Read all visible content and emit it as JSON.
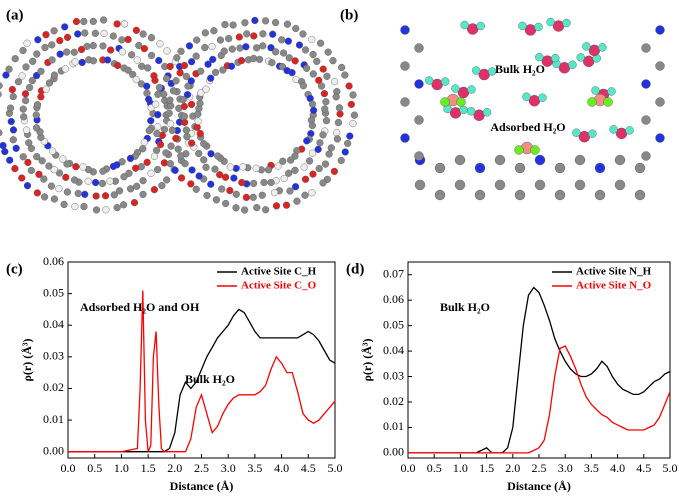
{
  "panels": {
    "a": {
      "label": "(a)"
    },
    "b": {
      "label": "(b)",
      "annotations": [
        "Bulk H₂O",
        "Adsorbed H₂O"
      ]
    }
  },
  "chart_data": [
    {
      "type": "line",
      "panel_label": "(c)",
      "xlabel": "Distance (Å)",
      "ylabel": "ρ(r) (Å³)",
      "annotations": [
        "Adsorbed H₂O and OH",
        "Bulk H₂O"
      ],
      "xlim": [
        0,
        5
      ],
      "ylim": [
        -0.002,
        0.06
      ],
      "xticks": [
        {
          "value": 0,
          "label": "0.0"
        },
        {
          "value": 0.5,
          "label": "0.5"
        },
        {
          "value": 1,
          "label": "1.0"
        },
        {
          "value": 1.5,
          "label": "1.5"
        },
        {
          "value": 2,
          "label": "2.0"
        },
        {
          "value": 2.5,
          "label": "2.5"
        },
        {
          "value": 3,
          "label": "3.0"
        },
        {
          "value": 3.5,
          "label": "3.5"
        },
        {
          "value": 4,
          "label": "4.0"
        },
        {
          "value": 4.5,
          "label": "4.5"
        },
        {
          "value": 5,
          "label": "5.0"
        }
      ],
      "yticks": [
        {
          "value": 0,
          "label": "0.00"
        },
        {
          "value": 0.01,
          "label": "0.01"
        },
        {
          "value": 0.02,
          "label": "0.02"
        },
        {
          "value": 0.03,
          "label": "0.03"
        },
        {
          "value": 0.04,
          "label": "0.04"
        },
        {
          "value": 0.05,
          "label": "0.05"
        },
        {
          "value": 0.06,
          "label": "0.06"
        }
      ],
      "x": [
        0,
        0.5,
        1.0,
        1.3,
        1.35,
        1.4,
        1.45,
        1.5,
        1.55,
        1.6,
        1.65,
        1.7,
        1.75,
        1.8,
        1.9,
        2.0,
        2.1,
        2.2,
        2.3,
        2.4,
        2.5,
        2.6,
        2.7,
        2.8,
        2.9,
        3.0,
        3.1,
        3.2,
        3.3,
        3.4,
        3.5,
        3.6,
        3.7,
        3.8,
        3.9,
        4.0,
        4.1,
        4.2,
        4.3,
        4.4,
        4.5,
        4.6,
        4.7,
        4.8,
        4.9,
        5.0
      ],
      "legend": "upper right",
      "series": [
        {
          "name": "Active Site C_H",
          "color": "#000000",
          "values": [
            0,
            0,
            0,
            0,
            0,
            0,
            0,
            0,
            0,
            0,
            0,
            0,
            0,
            0,
            0.001,
            0.006,
            0.018,
            0.022,
            0.02,
            0.022,
            0.026,
            0.03,
            0.033,
            0.036,
            0.038,
            0.04,
            0.043,
            0.045,
            0.044,
            0.041,
            0.038,
            0.036,
            0.036,
            0.036,
            0.036,
            0.036,
            0.036,
            0.036,
            0.036,
            0.037,
            0.038,
            0.037,
            0.035,
            0.032,
            0.029,
            0.028
          ]
        },
        {
          "name": "Active Site C_O",
          "color": "#ff0000",
          "values": [
            0,
            0,
            0,
            0.001,
            0.02,
            0.051,
            0.01,
            0,
            0.002,
            0.03,
            0.038,
            0.015,
            0.001,
            0,
            0,
            0,
            0,
            0,
            0.004,
            0.014,
            0.018,
            0.012,
            0.006,
            0.008,
            0.012,
            0.015,
            0.017,
            0.018,
            0.018,
            0.018,
            0.018,
            0.019,
            0.021,
            0.026,
            0.03,
            0.028,
            0.025,
            0.025,
            0.019,
            0.012,
            0.01,
            0.009,
            0.01,
            0.012,
            0.014,
            0.016
          ]
        }
      ]
    },
    {
      "type": "line",
      "panel_label": "(d)",
      "xlabel": "Distance (Å)",
      "ylabel": "ρ(r) (Å³)",
      "annotations": [
        "Bulk H₂O"
      ],
      "xlim": [
        0,
        5
      ],
      "ylim": [
        -0.002,
        0.075
      ],
      "xticks": [
        {
          "value": 0,
          "label": "0.0"
        },
        {
          "value": 0.5,
          "label": "0.5"
        },
        {
          "value": 1,
          "label": "1.0"
        },
        {
          "value": 1.5,
          "label": "1.5"
        },
        {
          "value": 2,
          "label": "2.0"
        },
        {
          "value": 2.5,
          "label": "2.5"
        },
        {
          "value": 3,
          "label": "3.0"
        },
        {
          "value": 3.5,
          "label": "3.5"
        },
        {
          "value": 4,
          "label": "4.0"
        },
        {
          "value": 4.5,
          "label": "4.5"
        },
        {
          "value": 5,
          "label": "5.0"
        }
      ],
      "yticks": [
        {
          "value": 0,
          "label": "0.00"
        },
        {
          "value": 0.01,
          "label": "0.01"
        },
        {
          "value": 0.02,
          "label": "0.02"
        },
        {
          "value": 0.03,
          "label": "0.03"
        },
        {
          "value": 0.04,
          "label": "0.04"
        },
        {
          "value": 0.05,
          "label": "0.05"
        },
        {
          "value": 0.06,
          "label": "0.06"
        },
        {
          "value": 0.07,
          "label": "0.07"
        }
      ],
      "x": [
        0,
        0.1,
        0.2,
        0.3,
        0.4,
        0.5,
        0.6,
        0.7,
        0.8,
        0.9,
        1.0,
        1.1,
        1.2,
        1.3,
        1.4,
        1.5,
        1.6,
        1.7,
        1.8,
        1.9,
        2.0,
        2.1,
        2.2,
        2.3,
        2.4,
        2.5,
        2.6,
        2.7,
        2.8,
        2.9,
        3.0,
        3.1,
        3.2,
        3.3,
        3.4,
        3.5,
        3.6,
        3.7,
        3.8,
        3.9,
        4.0,
        4.1,
        4.2,
        4.3,
        4.4,
        4.5,
        4.6,
        4.7,
        4.8,
        4.9,
        5.0
      ],
      "legend": "upper right",
      "series": [
        {
          "name": "Active Site N_H",
          "color": "#000000",
          "values": [
            0,
            0,
            0,
            0,
            0,
            0,
            0,
            0,
            0,
            0,
            0,
            0,
            0,
            0,
            0.001,
            0.002,
            0,
            0,
            0,
            0.002,
            0.01,
            0.03,
            0.05,
            0.062,
            0.065,
            0.063,
            0.058,
            0.052,
            0.045,
            0.04,
            0.036,
            0.033,
            0.031,
            0.03,
            0.03,
            0.031,
            0.033,
            0.036,
            0.034,
            0.03,
            0.027,
            0.025,
            0.024,
            0.023,
            0.023,
            0.024,
            0.026,
            0.028,
            0.029,
            0.031,
            0.032
          ]
        },
        {
          "name": "Active Site N_O",
          "color": "#ff0000",
          "values": [
            0,
            0,
            0,
            0,
            0,
            0,
            0,
            0,
            0,
            0,
            0,
            0,
            0,
            0,
            0,
            0,
            0,
            0,
            0,
            0,
            0,
            0,
            0,
            0,
            0.001,
            0.002,
            0.005,
            0.015,
            0.03,
            0.041,
            0.042,
            0.038,
            0.033,
            0.027,
            0.022,
            0.019,
            0.017,
            0.015,
            0.014,
            0.012,
            0.011,
            0.01,
            0.009,
            0.009,
            0.009,
            0.009,
            0.01,
            0.011,
            0.014,
            0.019,
            0.024
          ]
        }
      ]
    }
  ]
}
